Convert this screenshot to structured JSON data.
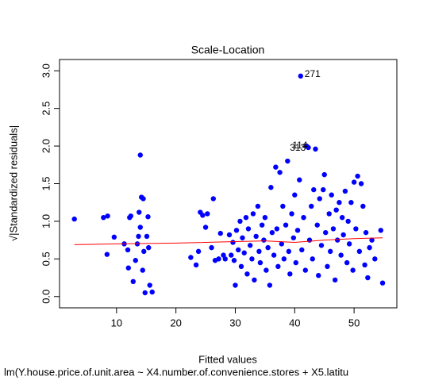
{
  "chart_data": {
    "type": "scatter",
    "title": "Scale-Location",
    "x_label": "Fitted values",
    "y_label": "√|Standardized residuals|",
    "subtitle": "lm(Y.house.price.of.unit.area ~ X4.number.of.convenience.stores + X5.latitu",
    "xlim": [
      0.4,
      57.2
    ],
    "ylim": [
      -0.15,
      3.15
    ],
    "xticks": [
      10,
      20,
      30,
      40,
      50
    ],
    "yticks": [
      {
        "value": 0,
        "label": "0.0"
      },
      {
        "value": 0.5,
        "label": "0.5"
      },
      {
        "value": 1,
        "label": "1.0"
      },
      {
        "value": 1.5,
        "label": "1.5"
      },
      {
        "value": 2,
        "label": "2.0"
      },
      {
        "value": 2.5,
        "label": "2.5"
      },
      {
        "value": 3,
        "label": "3.0"
      }
    ],
    "grid": false,
    "series": [
      {
        "color": "#0000ff",
        "x": [
          2.9,
          7.8,
          8.5,
          8.4,
          9.6,
          11.3,
          11.9,
          12,
          12.2,
          12.4,
          12.8,
          13.2,
          13.5,
          13.7,
          13.8,
          14,
          14,
          14.2,
          14.5,
          14.4,
          14.6,
          14.8,
          15.1,
          15.3,
          15.4,
          15.6,
          16,
          22.5,
          23.4,
          23.8,
          24.1,
          24.5,
          25,
          25.3,
          26,
          26.3,
          26.6,
          27.2,
          27.5,
          28,
          28.3,
          29,
          29.3,
          29.6,
          29.8,
          30,
          30.2,
          30.5,
          30.8,
          31,
          31.2,
          31.5,
          31.8,
          32,
          32.2,
          32.5,
          32.8,
          33,
          33.2,
          33.5,
          33.8,
          34,
          34.2,
          34.5,
          34.8,
          35,
          35.2,
          35.5,
          35.8,
          36,
          36.2,
          36.5,
          36.8,
          37,
          37.2,
          37.5,
          37.8,
          38,
          38.2,
          38.5,
          38.8,
          39,
          39.2,
          39.5,
          39.8,
          40,
          40.2,
          40.5,
          40.8,
          41,
          41.2,
          41.5,
          41.8,
          42,
          42.3,
          42.5,
          42.8,
          43,
          43.2,
          43.5,
          43.8,
          44,
          44.2,
          44.5,
          44.8,
          45,
          45.2,
          45.5,
          45.8,
          46,
          46.2,
          46.5,
          46.8,
          47,
          47.2,
          47.5,
          47.8,
          48,
          48.2,
          48.5,
          48.8,
          49,
          49.2,
          49.5,
          49.8,
          50,
          50.3,
          50.6,
          50.9,
          51.2,
          51.5,
          51.8,
          52,
          52.3,
          52.6,
          53,
          53.5,
          54.5,
          54.8
        ],
        "values": [
          1.03,
          1.05,
          1.07,
          0.56,
          0.79,
          0.7,
          0.62,
          0.38,
          1.05,
          1.07,
          0.2,
          0.48,
          0.7,
          0.8,
          1.12,
          0.92,
          1.88,
          1.32,
          1.3,
          0.35,
          0.6,
          0.05,
          0.8,
          1.06,
          0.65,
          0.15,
          0.06,
          0.52,
          0.42,
          0.6,
          1.12,
          1.08,
          0.92,
          1.1,
          0.65,
          1.3,
          0.48,
          0.5,
          0.84,
          0.55,
          0.5,
          0.82,
          0.55,
          0.72,
          0.48,
          0.15,
          0.88,
          0.62,
          1.0,
          0.4,
          0.78,
          0.58,
          1.05,
          0.3,
          0.9,
          0.68,
          0.5,
          1.1,
          0.22,
          0.8,
          1.2,
          0.6,
          0.45,
          0.95,
          0.75,
          1.05,
          0.35,
          0.65,
          0.15,
          1.45,
          0.85,
          0.55,
          1.72,
          0.9,
          0.4,
          1.65,
          0.7,
          1.2,
          0.5,
          0.95,
          1.8,
          0.6,
          0.3,
          1.1,
          0.78,
          1.35,
          0.45,
          0.88,
          1.55,
          2.93,
          0.62,
          1.05,
          0.35,
          2.0,
          1.98,
          0.75,
          1.2,
          0.5,
          1.42,
          1.96,
          0.95,
          0.28,
          1.3,
          0.68,
          1.42,
          1.62,
          0.85,
          0.4,
          1.1,
          0.6,
          1.35,
          0.9,
          0.22,
          1.15,
          0.75,
          1.25,
          0.55,
          1.05,
          0.82,
          1.4,
          0.45,
          1.0,
          0.7,
          1.25,
          0.35,
          1.52,
          0.9,
          1.6,
          0.6,
          1.5,
          1.2,
          0.42,
          0.85,
          0.25,
          0.65,
          0.75,
          0.5,
          0.88,
          0.18
        ]
      },
      {
        "type": "line",
        "color": "#ff0000",
        "x": [
          2.9,
          10,
          20,
          30,
          35,
          40,
          45,
          50,
          54.8
        ],
        "values": [
          0.69,
          0.7,
          0.71,
          0.73,
          0.74,
          0.72,
          0.75,
          0.77,
          0.78
        ]
      }
    ],
    "annotations": [
      {
        "text": "271",
        "x": 41,
        "y": 2.93,
        "pos": "right"
      },
      {
        "text": "313",
        "x": 42,
        "y": 2.0,
        "pos": "left"
      },
      {
        "text": "114",
        "x": 42.3,
        "y": 1.98,
        "pos": "left"
      }
    ]
  }
}
